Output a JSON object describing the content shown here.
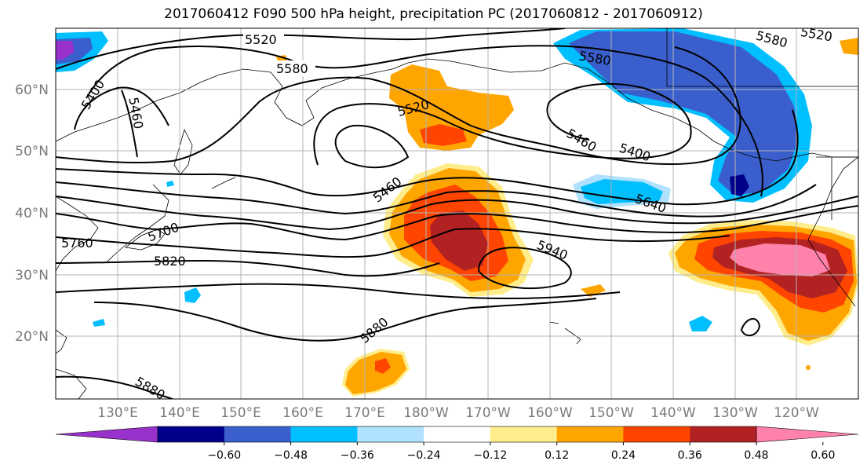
{
  "title": "2017060412 F090 500 hPa height, precipitation PC (2017060812 - 2017060912)",
  "lat_labels": [
    "60°N",
    "50°N",
    "40°N",
    "30°N",
    "20°N"
  ],
  "lon_labels": [
    "130°E",
    "140°E",
    "150°E",
    "160°E",
    "170°E",
    "180°W",
    "170°W",
    "160°W",
    "150°W",
    "140°W",
    "130°W",
    "120°W"
  ],
  "colorbar": {
    "colors": [
      "#9932CC",
      "#00008B",
      "#3A5FCD",
      "#00BFFF",
      "#B0E2FF",
      "#FFFFFF",
      "#FFEC8B",
      "#FFA500",
      "#FF4500",
      "#B22222",
      "#FF82AB"
    ],
    "ticks": [
      "−0.60",
      "−0.48",
      "−0.36",
      "−0.24",
      "−0.12",
      "0.12",
      "0.24",
      "0.36",
      "0.48",
      "0.60"
    ]
  },
  "contour_labels": [
    "5520",
    "5580",
    "5400",
    "5460",
    "5520",
    "5580",
    "5520",
    "5460",
    "5400",
    "5460",
    "5640",
    "5700",
    "5760",
    "5820",
    "5940",
    "5880",
    "5880"
  ]
}
